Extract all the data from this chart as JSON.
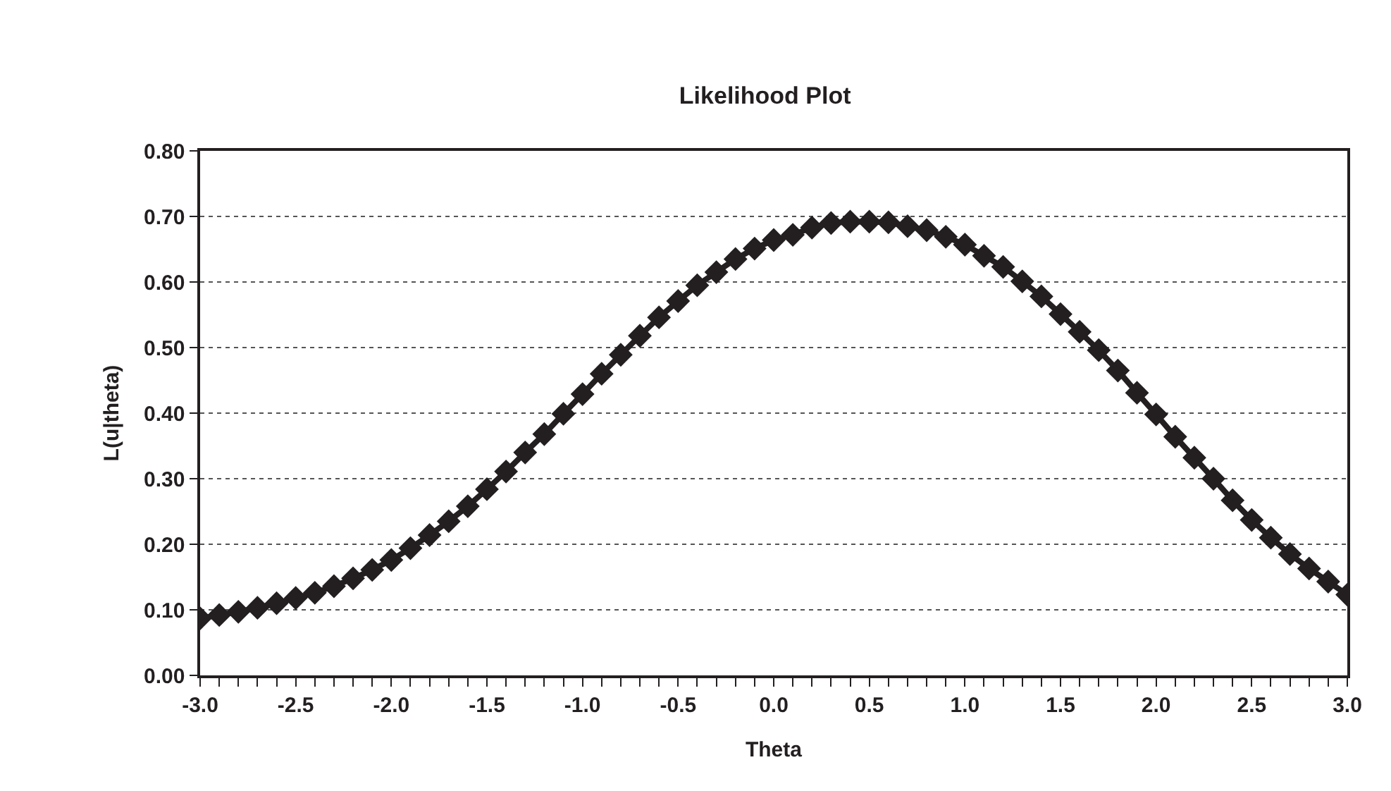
{
  "chart_data": {
    "type": "line",
    "title": "Likelihood Plot",
    "xlabel": "Theta",
    "ylabel": "L(u|theta)",
    "x": [
      -3.0,
      -2.9,
      -2.8,
      -2.7,
      -2.6,
      -2.5,
      -2.4,
      -2.3,
      -2.2,
      -2.1,
      -2.0,
      -1.9,
      -1.8,
      -1.7,
      -1.6,
      -1.5,
      -1.4,
      -1.3,
      -1.2,
      -1.1,
      -1.0,
      -0.9,
      -0.8,
      -0.7,
      -0.6,
      -0.5,
      -0.4,
      -0.3,
      -0.2,
      -0.1,
      0.0,
      0.1,
      0.2,
      0.3,
      0.4,
      0.5,
      0.6,
      0.7,
      0.8,
      0.9,
      1.0,
      1.1,
      1.2,
      1.3,
      1.4,
      1.5,
      1.6,
      1.7,
      1.8,
      1.9,
      2.0,
      2.1,
      2.2,
      2.3,
      2.4,
      2.5,
      2.6,
      2.7,
      2.8,
      2.9,
      3.0
    ],
    "series": [
      {
        "color": "#231f20",
        "values": [
          0.087,
          0.092,
          0.097,
          0.103,
          0.11,
          0.118,
          0.126,
          0.136,
          0.148,
          0.161,
          0.176,
          0.194,
          0.214,
          0.235,
          0.258,
          0.284,
          0.311,
          0.34,
          0.368,
          0.399,
          0.429,
          0.46,
          0.489,
          0.518,
          0.546,
          0.571,
          0.595,
          0.615,
          0.635,
          0.651,
          0.664,
          0.672,
          0.683,
          0.69,
          0.692,
          0.692,
          0.691,
          0.685,
          0.679,
          0.669,
          0.657,
          0.64,
          0.623,
          0.601,
          0.578,
          0.551,
          0.524,
          0.496,
          0.465,
          0.431,
          0.398,
          0.364,
          0.332,
          0.3,
          0.267,
          0.237,
          0.21,
          0.185,
          0.163,
          0.143,
          0.123
        ]
      }
    ],
    "xlim": [
      -3.0,
      3.0
    ],
    "xticks": [
      {
        "value": -3.0,
        "label": "-3.0"
      },
      {
        "value": -2.9,
        "label": null
      },
      {
        "value": -2.8,
        "label": null
      },
      {
        "value": -2.7,
        "label": null
      },
      {
        "value": -2.6,
        "label": null
      },
      {
        "value": -2.5,
        "label": "-2.5"
      },
      {
        "value": -2.4,
        "label": null
      },
      {
        "value": -2.3,
        "label": null
      },
      {
        "value": -2.2,
        "label": null
      },
      {
        "value": -2.1,
        "label": null
      },
      {
        "value": -2.0,
        "label": "-2.0"
      },
      {
        "value": -1.9,
        "label": null
      },
      {
        "value": -1.8,
        "label": null
      },
      {
        "value": -1.7,
        "label": null
      },
      {
        "value": -1.6,
        "label": null
      },
      {
        "value": -1.5,
        "label": "-1.5"
      },
      {
        "value": -1.4,
        "label": null
      },
      {
        "value": -1.3,
        "label": null
      },
      {
        "value": -1.2,
        "label": null
      },
      {
        "value": -1.1,
        "label": null
      },
      {
        "value": -1.0,
        "label": "-1.0"
      },
      {
        "value": -0.9,
        "label": null
      },
      {
        "value": -0.8,
        "label": null
      },
      {
        "value": -0.7,
        "label": null
      },
      {
        "value": -0.6,
        "label": null
      },
      {
        "value": -0.5,
        "label": "-0.5"
      },
      {
        "value": -0.4,
        "label": null
      },
      {
        "value": -0.3,
        "label": null
      },
      {
        "value": -0.2,
        "label": null
      },
      {
        "value": -0.1,
        "label": null
      },
      {
        "value": 0.0,
        "label": "0.0"
      },
      {
        "value": 0.1,
        "label": null
      },
      {
        "value": 0.2,
        "label": null
      },
      {
        "value": 0.3,
        "label": null
      },
      {
        "value": 0.4,
        "label": null
      },
      {
        "value": 0.5,
        "label": "0.5"
      },
      {
        "value": 0.6,
        "label": null
      },
      {
        "value": 0.7,
        "label": null
      },
      {
        "value": 0.8,
        "label": null
      },
      {
        "value": 0.9,
        "label": null
      },
      {
        "value": 1.0,
        "label": "1.0"
      },
      {
        "value": 1.1,
        "label": null
      },
      {
        "value": 1.2,
        "label": null
      },
      {
        "value": 1.3,
        "label": null
      },
      {
        "value": 1.4,
        "label": null
      },
      {
        "value": 1.5,
        "label": "1.5"
      },
      {
        "value": 1.6,
        "label": null
      },
      {
        "value": 1.7,
        "label": null
      },
      {
        "value": 1.8,
        "label": null
      },
      {
        "value": 1.9,
        "label": null
      },
      {
        "value": 2.0,
        "label": "2.0"
      },
      {
        "value": 2.1,
        "label": null
      },
      {
        "value": 2.2,
        "label": null
      },
      {
        "value": 2.3,
        "label": null
      },
      {
        "value": 2.4,
        "label": null
      },
      {
        "value": 2.5,
        "label": "2.5"
      },
      {
        "value": 2.6,
        "label": null
      },
      {
        "value": 2.7,
        "label": null
      },
      {
        "value": 2.8,
        "label": null
      },
      {
        "value": 2.9,
        "label": null
      },
      {
        "value": 3.0,
        "label": "3.0"
      }
    ],
    "ylim": [
      0,
      0.8
    ],
    "yticks": [
      {
        "value": 0,
        "label": "0.00"
      },
      {
        "value": 0.1,
        "label": "0.10"
      },
      {
        "value": 0.2,
        "label": "0.20"
      },
      {
        "value": 0.3,
        "label": "0.30"
      },
      {
        "value": 0.4,
        "label": "0.40"
      },
      {
        "value": 0.5,
        "label": "0.50"
      },
      {
        "value": 0.6,
        "label": "0.60"
      },
      {
        "value": 0.7,
        "label": "0.70"
      },
      {
        "value": 0.8,
        "label": "0.80"
      }
    ],
    "grid": "y",
    "marker": "diamond",
    "line_style": "solid"
  }
}
